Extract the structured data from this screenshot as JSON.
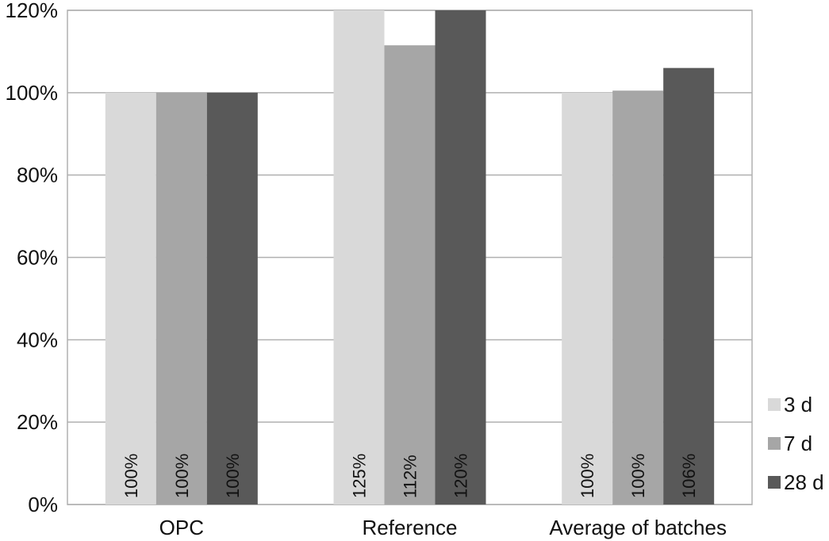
{
  "chart_data": {
    "type": "bar",
    "title": "",
    "xlabel": "",
    "ylabel": "",
    "ylim": [
      0,
      1.2
    ],
    "yticks": [
      "0%",
      "20%",
      "40%",
      "60%",
      "80%",
      "100%",
      "120%"
    ],
    "categories": [
      "OPC",
      "Reference",
      "Average of batches"
    ],
    "series": [
      {
        "name": "3 d",
        "color": "#d9d9d9",
        "values": [
          1.0,
          1.25,
          1.0
        ],
        "labels": [
          "100%",
          "125%",
          "100%"
        ]
      },
      {
        "name": "7 d",
        "color": "#a6a6a6",
        "values": [
          1.0,
          1.115,
          1.005
        ],
        "labels": [
          "100%",
          "112%",
          "100%"
        ]
      },
      {
        "name": "28 d",
        "color": "#595959",
        "values": [
          1.0,
          1.2,
          1.06
        ],
        "labels": [
          "100%",
          "120%",
          "106%"
        ]
      }
    ],
    "grid": true,
    "legend_position": "right-bottom",
    "clip_to_axis_max": true
  }
}
